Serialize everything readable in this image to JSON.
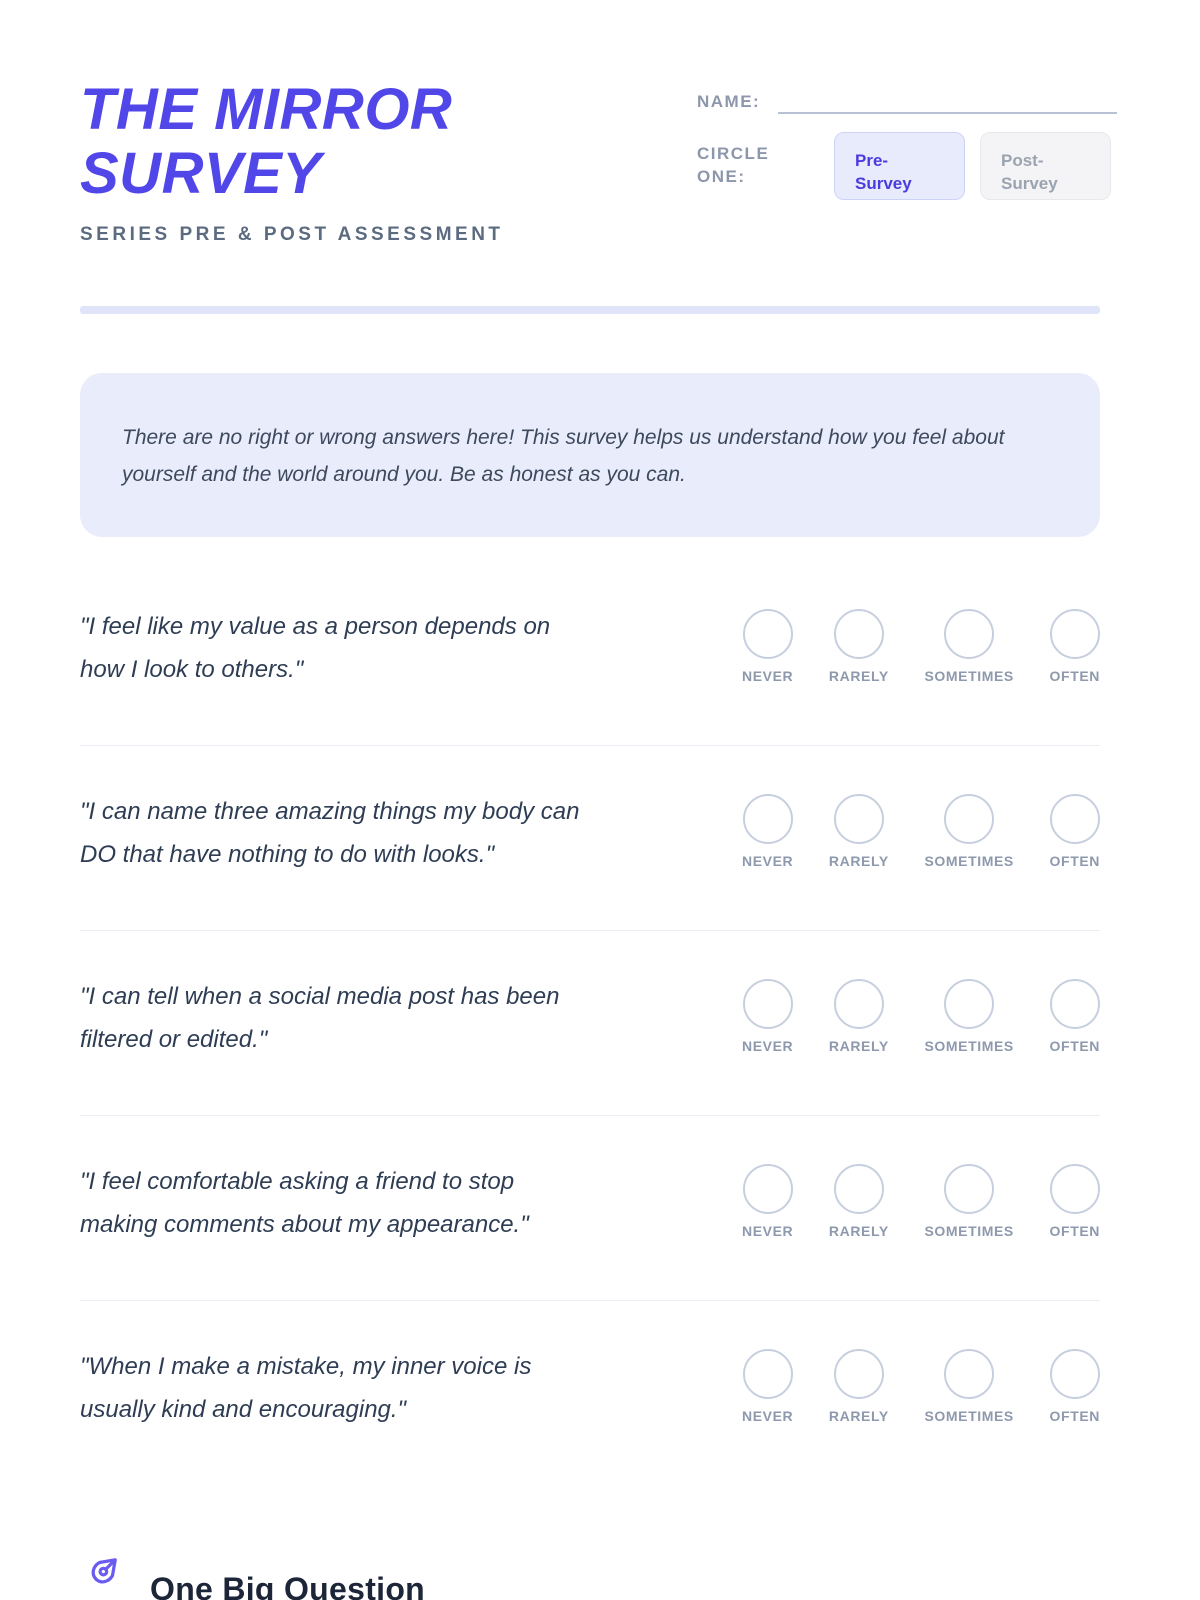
{
  "header": {
    "title_line1": "THE MIRROR",
    "title_line2": "SURVEY",
    "subtitle": "SERIES PRE & POST ASSESSMENT",
    "name_label": "NAME:",
    "circle_one_line1": "CIRCLE",
    "circle_one_line2": "ONE:",
    "pre_button": {
      "line1": "Pre-",
      "line2": "Survey"
    },
    "post_button": {
      "line1": "Post-",
      "line2": "Survey"
    }
  },
  "intro": {
    "text": "There are no right or wrong answers here! This survey helps us understand how you feel about yourself and the world around you. Be as honest as you can."
  },
  "options": [
    "NEVER",
    "RARELY",
    "SOMETIMES",
    "OFTEN"
  ],
  "questions": [
    {
      "lines": [
        "\"I feel like my value as a person depends on",
        "how I look to others.\""
      ]
    },
    {
      "lines": [
        "\"I can name three amazing things my body can",
        "DO that have nothing to do with looks.\""
      ]
    },
    {
      "lines": [
        "\"I can tell when a social media post has been",
        "filtered or edited.\""
      ]
    },
    {
      "lines": [
        "\"I feel comfortable asking a friend to stop",
        "making comments about my appearance.\""
      ]
    },
    {
      "lines": [
        "\"When I make a mistake, my inner voice is",
        "usually kind and encouraging.\""
      ]
    }
  ],
  "footer": {
    "heading": "One Big Question",
    "icon": "pen-nib-icon"
  },
  "colors": {
    "accent_purple": "#5146e8",
    "pre_button_bg": "#e8ebfc",
    "intro_box_bg": "#e9ecfb",
    "divider_bar": "#dfe4f9",
    "question_text": "#2e3d54",
    "option_circle_border": "#c7cfdf",
    "option_label": "#8e99ad",
    "footer_icon_purple": "#6a5cf1"
  }
}
